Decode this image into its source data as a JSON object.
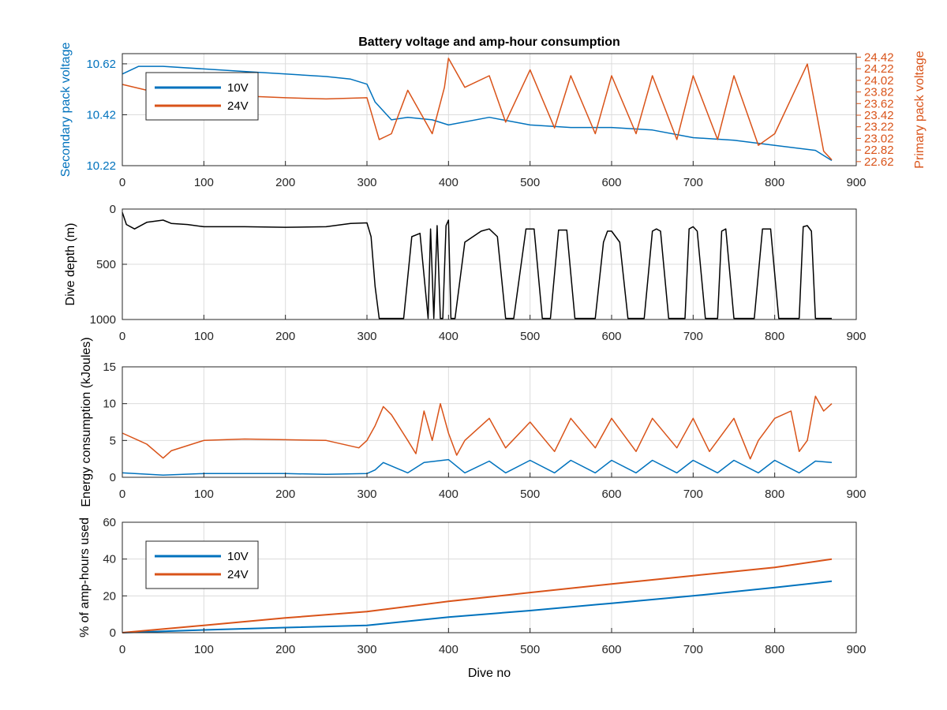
{
  "title": "Battery voltage and amp-hour consumption",
  "colors": {
    "s10V": "#0072BD",
    "s24V": "#D95319",
    "depth": "#000000",
    "grid": "#dcdcdc",
    "axis": "#262626"
  },
  "chart_data": [
    {
      "type": "line",
      "xlabel": "",
      "ylabel_left": "Secondary pack voltage",
      "ylabel_right": "Primary pack voltage",
      "xlim": [
        0,
        900
      ],
      "ylim_left": [
        10.22,
        10.66
      ],
      "ylim_right": [
        22.55,
        24.48
      ],
      "xticks": [
        0,
        100,
        200,
        300,
        400,
        500,
        600,
        700,
        800,
        900
      ],
      "yticks_left": [
        10.22,
        10.42,
        10.62
      ],
      "yticks_right": [
        22.62,
        22.82,
        23.02,
        23.22,
        23.42,
        23.62,
        23.82,
        24.02,
        24.22,
        24.42
      ],
      "grid": true,
      "legend": {
        "placement": "top-left",
        "entries": [
          "10V",
          "24V"
        ]
      },
      "series": [
        {
          "name": "10V",
          "axis": "left",
          "x": [
            0,
            20,
            50,
            100,
            150,
            200,
            250,
            280,
            300,
            310,
            330,
            350,
            380,
            400,
            450,
            500,
            550,
            600,
            650,
            700,
            750,
            800,
            850,
            870
          ],
          "y": [
            10.58,
            10.61,
            10.61,
            10.6,
            10.59,
            10.58,
            10.57,
            10.56,
            10.54,
            10.47,
            10.4,
            10.41,
            10.4,
            10.38,
            10.41,
            10.38,
            10.37,
            10.37,
            10.36,
            10.33,
            10.32,
            10.3,
            10.28,
            10.24
          ]
        },
        {
          "name": "24V",
          "axis": "right",
          "x": [
            0,
            30,
            100,
            150,
            200,
            250,
            300,
            315,
            330,
            350,
            380,
            395,
            400,
            420,
            450,
            470,
            500,
            530,
            550,
            580,
            600,
            630,
            650,
            680,
            700,
            730,
            750,
            780,
            800,
            840,
            860,
            870
          ],
          "y": [
            23.95,
            23.85,
            23.78,
            23.75,
            23.72,
            23.7,
            23.72,
            23.0,
            23.1,
            23.85,
            23.1,
            23.9,
            24.4,
            23.9,
            24.1,
            23.3,
            24.2,
            23.2,
            24.1,
            23.1,
            24.1,
            23.1,
            24.1,
            23.0,
            24.1,
            23.0,
            24.1,
            22.9,
            23.1,
            24.3,
            22.8,
            22.65
          ]
        }
      ]
    },
    {
      "type": "line",
      "xlabel": "",
      "ylabel": "Dive depth (m)",
      "xlim": [
        0,
        900
      ],
      "ylim": [
        0,
        1000
      ],
      "y_reversed": true,
      "xticks": [
        0,
        100,
        200,
        300,
        400,
        500,
        600,
        700,
        800,
        900
      ],
      "yticks": [
        0,
        500,
        1000
      ],
      "grid": true,
      "series": [
        {
          "name": "",
          "x": [
            0,
            5,
            15,
            30,
            50,
            60,
            80,
            100,
            150,
            200,
            250,
            280,
            300,
            305,
            310,
            315,
            330,
            345,
            355,
            365,
            375,
            378,
            382,
            386,
            390,
            393,
            397,
            400,
            403,
            408,
            420,
            440,
            450,
            460,
            470,
            480,
            495,
            505,
            515,
            525,
            535,
            545,
            555,
            565,
            580,
            590,
            595,
            600,
            610,
            620,
            630,
            640,
            650,
            655,
            660,
            670,
            680,
            690,
            695,
            700,
            705,
            715,
            720,
            730,
            735,
            740,
            750,
            765,
            775,
            785,
            795,
            805,
            820,
            830,
            835,
            840,
            845,
            850,
            860,
            870
          ],
          "y": [
            30,
            140,
            180,
            120,
            100,
            130,
            140,
            160,
            160,
            165,
            160,
            130,
            125,
            250,
            700,
            990,
            990,
            990,
            250,
            220,
            990,
            180,
            990,
            150,
            990,
            990,
            150,
            100,
            990,
            990,
            300,
            200,
            180,
            250,
            990,
            990,
            180,
            180,
            990,
            990,
            190,
            190,
            990,
            990,
            990,
            300,
            200,
            200,
            300,
            990,
            990,
            990,
            200,
            180,
            200,
            990,
            990,
            990,
            180,
            160,
            200,
            990,
            990,
            990,
            200,
            180,
            990,
            990,
            990,
            180,
            180,
            990,
            990,
            990,
            160,
            150,
            200,
            990,
            990,
            990
          ]
        }
      ]
    },
    {
      "type": "line",
      "xlabel": "",
      "ylabel": "Energy consumption (kJoules)",
      "xlim": [
        0,
        900
      ],
      "ylim": [
        0,
        15
      ],
      "xticks": [
        0,
        100,
        200,
        300,
        400,
        500,
        600,
        700,
        800,
        900
      ],
      "yticks": [
        0,
        5,
        10,
        15
      ],
      "grid": true,
      "series": [
        {
          "name": "10V",
          "x": [
            0,
            50,
            100,
            150,
            200,
            250,
            300,
            310,
            320,
            350,
            370,
            400,
            420,
            450,
            470,
            500,
            530,
            550,
            580,
            600,
            630,
            650,
            680,
            700,
            730,
            750,
            780,
            800,
            830,
            850,
            870
          ],
          "y": [
            0.6,
            0.3,
            0.5,
            0.5,
            0.5,
            0.4,
            0.5,
            1.0,
            2.0,
            0.6,
            2.0,
            2.4,
            0.6,
            2.2,
            0.6,
            2.3,
            0.6,
            2.3,
            0.6,
            2.3,
            0.6,
            2.3,
            0.6,
            2.3,
            0.6,
            2.3,
            0.6,
            2.3,
            0.6,
            2.2,
            2.0
          ]
        },
        {
          "name": "24V",
          "x": [
            0,
            20,
            30,
            50,
            60,
            100,
            150,
            200,
            250,
            290,
            300,
            310,
            320,
            330,
            350,
            360,
            370,
            380,
            390,
            400,
            410,
            420,
            450,
            470,
            500,
            530,
            550,
            580,
            600,
            630,
            650,
            680,
            700,
            720,
            750,
            770,
            780,
            800,
            820,
            830,
            840,
            850,
            860,
            870
          ],
          "y": [
            6.0,
            5.0,
            4.5,
            2.6,
            3.6,
            5.0,
            5.2,
            5.1,
            5.0,
            4.0,
            5.0,
            7.0,
            9.6,
            8.5,
            5.0,
            3.2,
            9.0,
            5.0,
            10.0,
            6.0,
            3.0,
            5.0,
            8.0,
            4.0,
            7.5,
            3.5,
            8.0,
            4.0,
            8.0,
            3.5,
            8.0,
            4.0,
            8.0,
            3.5,
            8.0,
            2.5,
            5.0,
            8.0,
            9.0,
            3.5,
            5.0,
            11.0,
            9.0,
            10.0
          ]
        }
      ]
    },
    {
      "type": "line",
      "xlabel": "Dive no",
      "ylabel": "% of amp-hours used",
      "xlim": [
        0,
        900
      ],
      "ylim": [
        0,
        60
      ],
      "xticks": [
        0,
        100,
        200,
        300,
        400,
        500,
        600,
        700,
        800,
        900
      ],
      "yticks": [
        0,
        20,
        40,
        60
      ],
      "grid": true,
      "legend": {
        "placement": "top-left",
        "entries": [
          "10V",
          "24V"
        ]
      },
      "series": [
        {
          "name": "10V",
          "x": [
            0,
            100,
            200,
            300,
            400,
            500,
            600,
            700,
            800,
            870
          ],
          "y": [
            0,
            1.5,
            2.8,
            4.0,
            8.5,
            12.0,
            16.0,
            20.0,
            24.5,
            28.0
          ]
        },
        {
          "name": "24V",
          "x": [
            0,
            100,
            200,
            300,
            400,
            500,
            600,
            700,
            800,
            870
          ],
          "y": [
            0,
            4.0,
            8.0,
            11.5,
            17.0,
            21.8,
            26.5,
            31.0,
            35.5,
            40.0
          ]
        }
      ]
    }
  ]
}
